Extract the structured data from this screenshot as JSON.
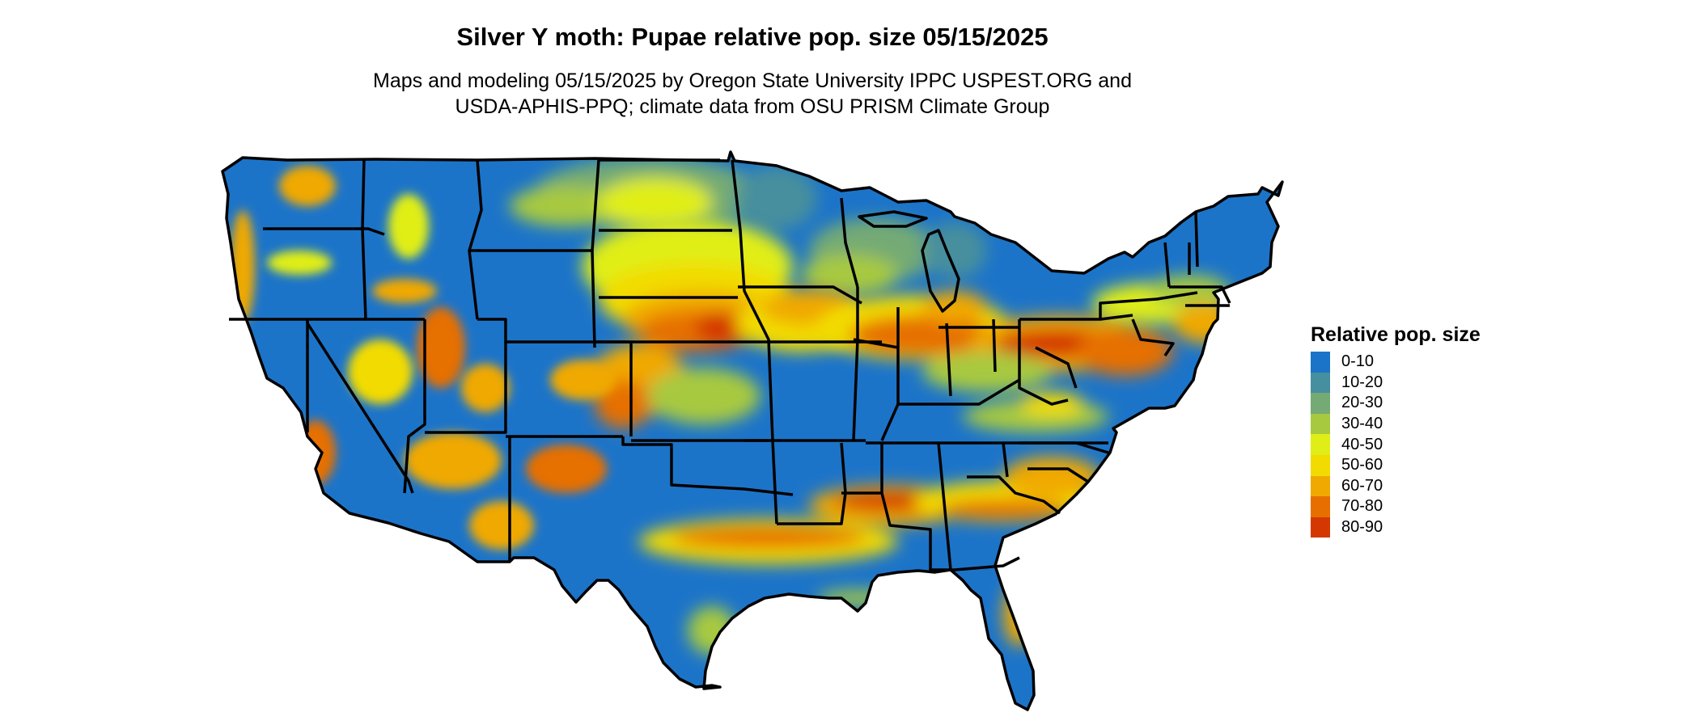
{
  "title": "Silver Y moth: Pupae relative pop. size 05/15/2025",
  "subtitle_line1": "Maps and modeling 05/15/2025 by Oregon State University IPPC USPEST.ORG and",
  "subtitle_line2": "USDA-APHIS-PPQ; climate data from OSU PRISM Climate Group",
  "legend": {
    "title": "Relative pop. size",
    "items": [
      {
        "label": "0-10",
        "color": "#1c74c9"
      },
      {
        "label": "10-20",
        "color": "#468f9e"
      },
      {
        "label": "20-30",
        "color": "#75aa74"
      },
      {
        "label": "30-40",
        "color": "#a7c93f"
      },
      {
        "label": "40-50",
        "color": "#e0ee17"
      },
      {
        "label": "50-60",
        "color": "#f2db00"
      },
      {
        "label": "60-70",
        "color": "#f0a900"
      },
      {
        "label": "70-80",
        "color": "#e66f00"
      },
      {
        "label": "80-90",
        "color": "#d43800"
      }
    ]
  },
  "map": {
    "region": "Contiguous United States",
    "background_color": "#1c74c9",
    "border_color": "#000000"
  }
}
